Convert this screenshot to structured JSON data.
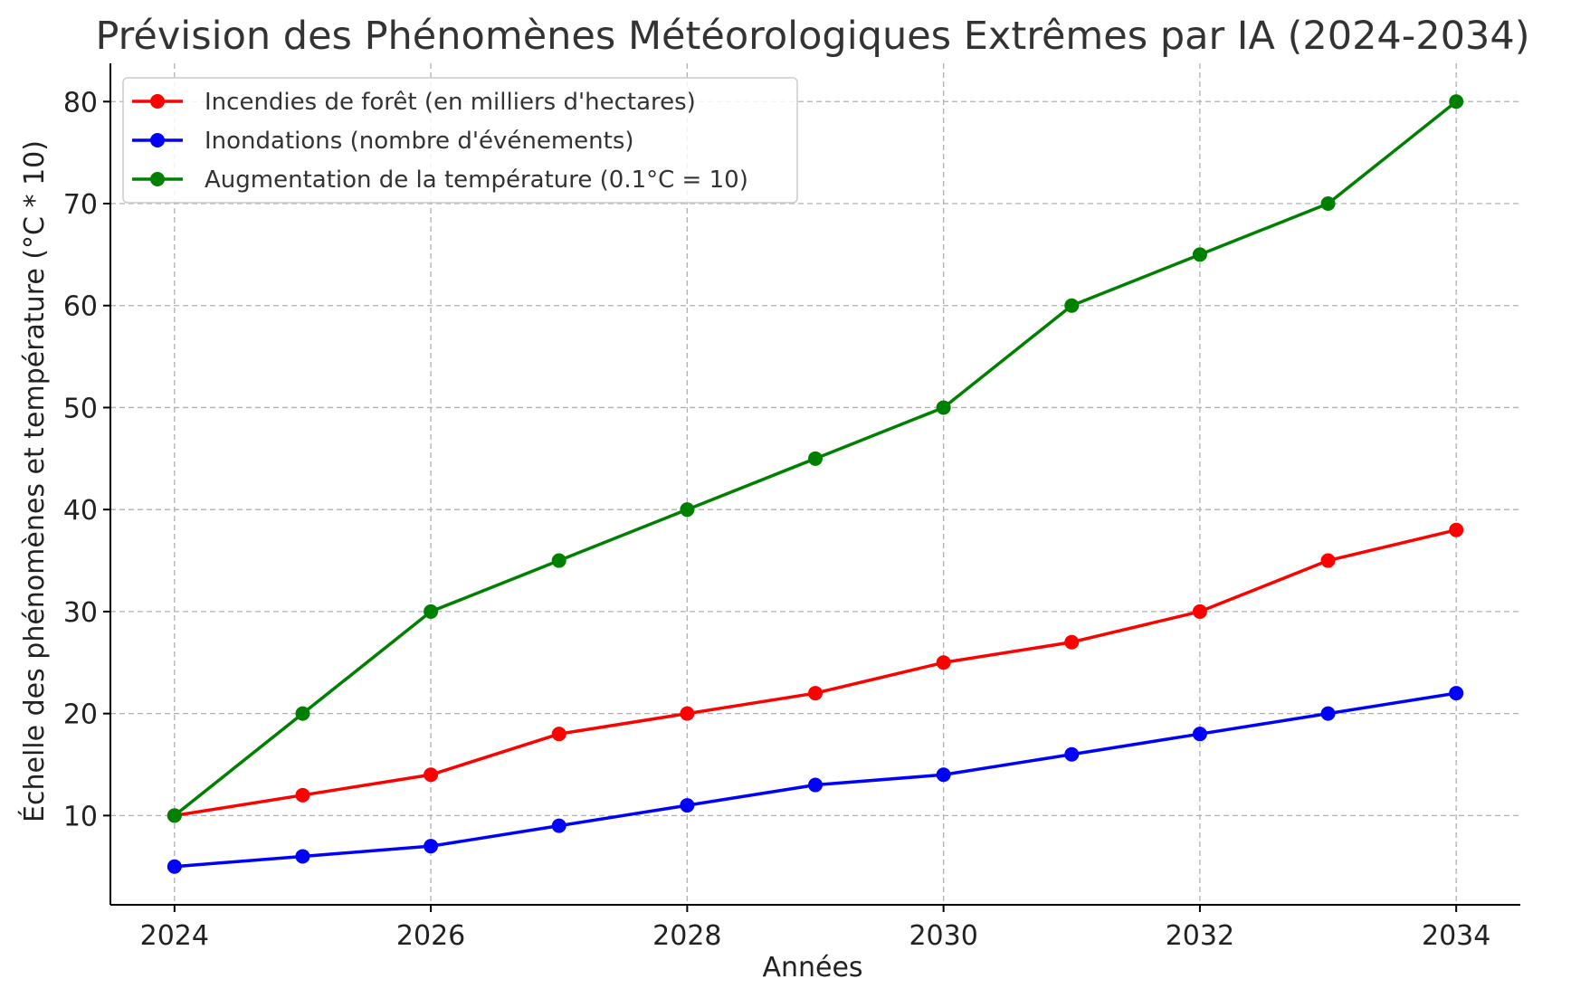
{
  "chart_data": {
    "type": "line",
    "title": "Prévision des Phénomènes Météorologiques Extrêmes par IA (2024-2034)",
    "xlabel": "Années",
    "ylabel": "Échelle des phénomènes et température (°C * 10)",
    "x": [
      2024,
      2025,
      2026,
      2027,
      2028,
      2029,
      2030,
      2031,
      2032,
      2033,
      2034
    ],
    "xticks": [
      2024,
      2026,
      2028,
      2030,
      2032,
      2034
    ],
    "yticks": [
      10,
      20,
      30,
      40,
      50,
      60,
      70,
      80
    ],
    "xlim": [
      2023.5,
      2034.5
    ],
    "ylim": [
      1.25,
      83.75
    ],
    "grid": true,
    "legend_position": "top-left",
    "series": [
      {
        "name": "Incendies de forêt (en milliers d'hectares)",
        "color": "#ff0000",
        "values": [
          10,
          12,
          14,
          18,
          20,
          22,
          25,
          27,
          30,
          35,
          38
        ]
      },
      {
        "name": "Inondations (nombre d'événements)",
        "color": "#0000ff",
        "values": [
          5,
          6,
          7,
          9,
          11,
          13,
          14,
          16,
          18,
          20,
          22
        ]
      },
      {
        "name": "Augmentation de la température (0.1°C = 10)",
        "color": "#008000",
        "values": [
          10,
          20,
          30,
          35,
          40,
          45,
          50,
          60,
          65,
          70,
          80
        ]
      }
    ]
  }
}
